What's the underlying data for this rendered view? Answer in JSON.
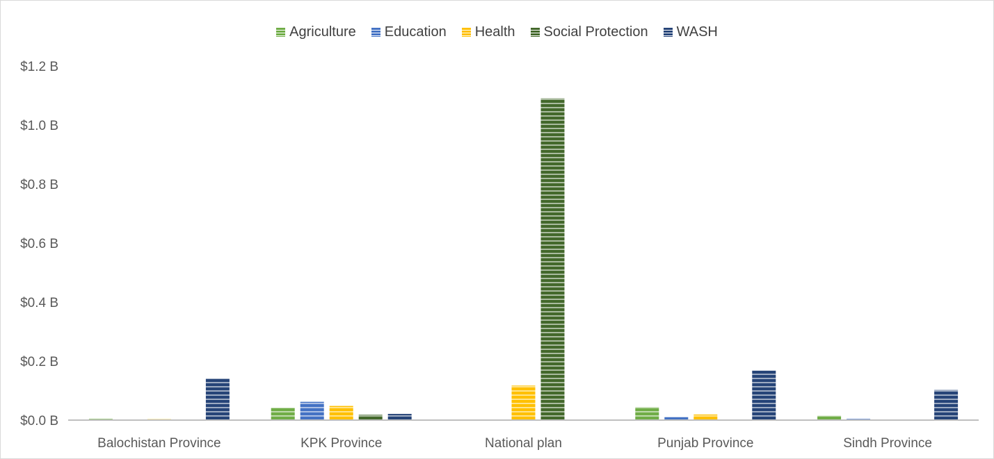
{
  "chart_data": {
    "type": "bar",
    "categories": [
      "Balochistan Province",
      "KPK Province",
      "National plan",
      "Punjab Province",
      "Sindh Province"
    ],
    "series": [
      {
        "name": "Agriculture",
        "color": "#70ad47",
        "values": [
          0.004,
          0.042,
          0.0,
          0.044,
          0.015
        ]
      },
      {
        "name": "Education",
        "color": "#4472c4",
        "values": [
          0.001,
          0.062,
          0.0,
          0.01,
          0.004
        ]
      },
      {
        "name": "Health",
        "color": "#ffc000",
        "values": [
          0.003,
          0.048,
          0.117,
          0.019,
          0.002
        ]
      },
      {
        "name": "Social Protection",
        "color": "#43682b",
        "values": [
          0.0,
          0.018,
          1.09,
          0.0,
          0.0
        ]
      },
      {
        "name": "WASH",
        "color": "#264478",
        "values": [
          0.141,
          0.021,
          0.0,
          0.168,
          0.102
        ]
      }
    ],
    "yticks": [
      "$0.0 B",
      "$0.2 B",
      "$0.4 B",
      "$0.6 B",
      "$0.8 B",
      "$1.0 B",
      "$1.2 B"
    ],
    "ylim": [
      0,
      1.2
    ],
    "title": "",
    "xlabel": "",
    "ylabel": "",
    "grid": false,
    "legend_position": "top"
  }
}
